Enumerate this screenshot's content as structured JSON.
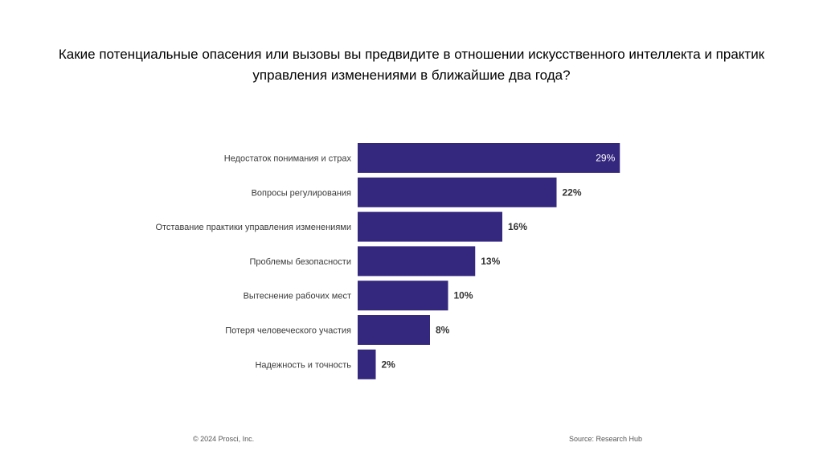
{
  "title_lines": [
    "Какие потенциальные опасения или вызовы вы предвидите в отношении искусственного интеллекта и практик",
    "управления изменениями в ближайшие два года?"
  ],
  "footer": {
    "copyright": "© 2024 Prosci, Inc.",
    "source": "Source: Research Hub"
  },
  "chart_data": {
    "type": "bar",
    "orientation": "horizontal",
    "categories": [
      "Недостаток понимания и страх",
      "Вопросы регулирования",
      "Отставание практики управления изменениями",
      "Проблемы безопасности",
      "Вытеснение рабочих мест",
      "Потеря человеческого участия",
      "Надежность и точность"
    ],
    "values": [
      29,
      22,
      16,
      13,
      10,
      8,
      2
    ],
    "data_labels": [
      "29%",
      "22%",
      "16%",
      "13%",
      "10%",
      "8%",
      "2%"
    ],
    "unit": "%",
    "xlim": [
      0,
      35
    ],
    "bar_color": "#34277e",
    "label_inside_color": "#ffffff",
    "label_outside_color": "#333333",
    "grid": false,
    "legend": "none"
  }
}
